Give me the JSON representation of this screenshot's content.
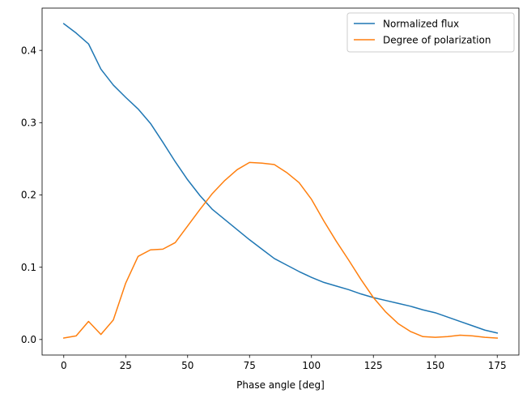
{
  "chart_data": {
    "type": "line",
    "title": "",
    "xlabel": "Phase angle [deg]",
    "ylabel": "",
    "xlim": [
      -8.75,
      183.75
    ],
    "ylim": [
      -0.0215,
      0.4585
    ],
    "xticks": [
      0,
      25,
      50,
      75,
      100,
      125,
      150,
      175
    ],
    "yticks": [
      0.0,
      0.1,
      0.2,
      0.3,
      0.4
    ],
    "xtick_labels": [
      "0",
      "25",
      "50",
      "75",
      "100",
      "125",
      "150",
      "175"
    ],
    "ytick_labels": [
      "0.0",
      "0.1",
      "0.2",
      "0.3",
      "0.4"
    ],
    "grid": false,
    "legend_position": "top-right",
    "x": [
      0,
      5,
      10,
      15,
      20,
      25,
      30,
      35,
      40,
      45,
      50,
      55,
      60,
      65,
      70,
      75,
      80,
      85,
      90,
      95,
      100,
      105,
      110,
      115,
      120,
      125,
      130,
      135,
      140,
      145,
      150,
      155,
      160,
      165,
      170,
      175
    ],
    "series": [
      {
        "name": "Normalized flux",
        "color": "#1f77b4",
        "values": [
          0.437,
          0.424,
          0.409,
          0.374,
          0.352,
          0.335,
          0.319,
          0.299,
          0.273,
          0.246,
          0.221,
          0.199,
          0.18,
          0.166,
          0.152,
          0.138,
          0.125,
          0.112,
          0.103,
          0.094,
          0.086,
          0.079,
          0.074,
          0.069,
          0.063,
          0.058,
          0.054,
          0.05,
          0.046,
          0.041,
          0.037,
          0.031,
          0.025,
          0.019,
          0.013,
          0.009
        ]
      },
      {
        "name": "Degree of polarization",
        "color": "#ff7f0e",
        "values": [
          0.002,
          0.005,
          0.025,
          0.007,
          0.027,
          0.078,
          0.115,
          0.124,
          0.125,
          0.134,
          0.157,
          0.18,
          0.202,
          0.22,
          0.235,
          0.245,
          0.244,
          0.242,
          0.231,
          0.217,
          0.194,
          0.164,
          0.136,
          0.11,
          0.083,
          0.058,
          0.038,
          0.022,
          0.011,
          0.004,
          0.003,
          0.004,
          0.006,
          0.005,
          0.003,
          0.002
        ]
      }
    ]
  }
}
